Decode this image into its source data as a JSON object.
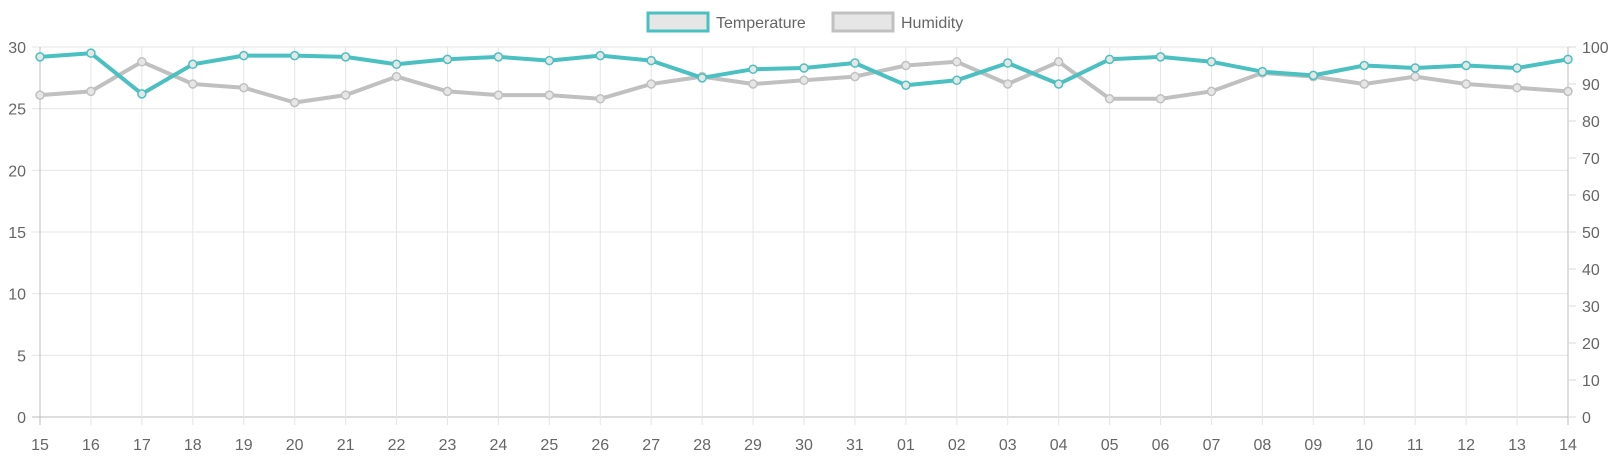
{
  "chart_data": {
    "type": "line",
    "categories": [
      "15",
      "16",
      "17",
      "18",
      "19",
      "20",
      "21",
      "22",
      "23",
      "24",
      "25",
      "26",
      "27",
      "28",
      "29",
      "30",
      "31",
      "01",
      "02",
      "03",
      "04",
      "05",
      "06",
      "07",
      "08",
      "09",
      "10",
      "11",
      "12",
      "13",
      "14"
    ],
    "series": [
      {
        "name": "Temperature",
        "axis": "left",
        "color": "#4BC0C0",
        "values": [
          29.2,
          29.5,
          26.2,
          28.6,
          29.3,
          29.3,
          29.2,
          28.6,
          29.0,
          29.2,
          28.9,
          29.3,
          28.9,
          27.5,
          28.2,
          28.3,
          28.7,
          26.9,
          27.3,
          28.7,
          27.0,
          29.0,
          29.2,
          28.8,
          28.0,
          27.7,
          28.5,
          28.3,
          28.5,
          28.3,
          29.0
        ]
      },
      {
        "name": "Humidity",
        "axis": "right",
        "color": "#C0C0C0",
        "values": [
          87,
          88,
          96,
          90,
          89,
          85,
          87,
          92,
          88,
          87,
          87,
          86,
          90,
          92,
          90,
          91,
          92,
          95,
          96,
          90,
          96,
          86,
          86,
          88,
          93,
          92,
          90,
          92,
          90,
          89,
          88
        ]
      }
    ],
    "y_left": {
      "min": 0,
      "max": 30,
      "ticks": [
        "0",
        "5",
        "10",
        "15",
        "20",
        "25",
        "30"
      ]
    },
    "y_right": {
      "min": 0,
      "max": 100,
      "ticks": [
        "0",
        "10",
        "20",
        "30",
        "40",
        "50",
        "60",
        "70",
        "80",
        "90",
        "100"
      ]
    },
    "grid": true,
    "legend_position": "top-center",
    "title": "",
    "xlabel": "",
    "ylabel": ""
  }
}
